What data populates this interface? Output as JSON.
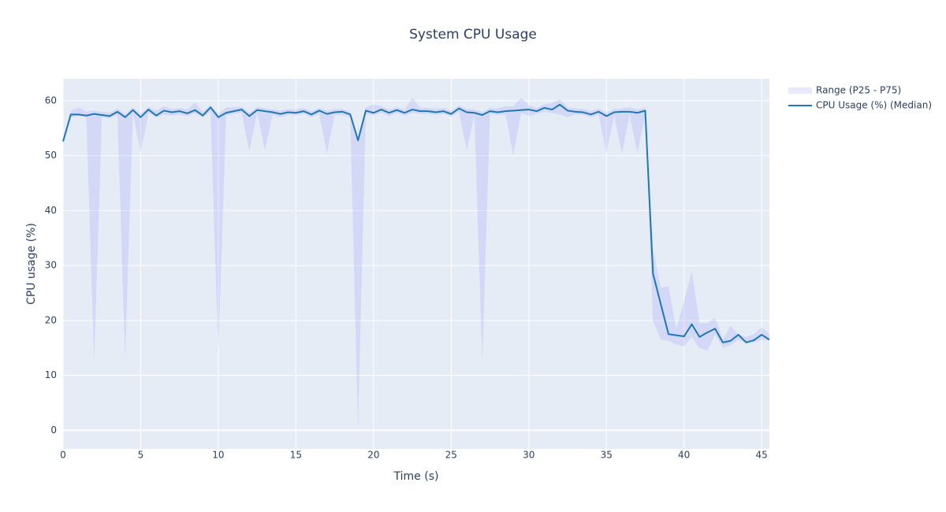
{
  "chart_data": {
    "type": "line-band",
    "title": "System CPU Usage",
    "x_label": "Time (s)",
    "y_label": "CPU usage (%)",
    "xlim": [
      0,
      45.5
    ],
    "ylim": [
      -3.4,
      64
    ],
    "xticks": [
      0,
      5,
      10,
      15,
      20,
      25,
      30,
      35,
      40,
      45
    ],
    "yticks": [
      0,
      10,
      20,
      30,
      40,
      50,
      60
    ],
    "grid": true,
    "legend": "top-right",
    "x": [
      0,
      0.5,
      1,
      1.5,
      2,
      2.5,
      3,
      3.5,
      4,
      4.5,
      5,
      5.5,
      6,
      6.5,
      7,
      7.5,
      8,
      8.5,
      9,
      9.5,
      10,
      10.5,
      11,
      11.5,
      12,
      12.5,
      13,
      13.5,
      14,
      14.5,
      15,
      15.5,
      16,
      16.5,
      17,
      17.5,
      18,
      18.5,
      19,
      19.5,
      20,
      20.5,
      21,
      21.5,
      22,
      22.5,
      23,
      23.5,
      24,
      24.5,
      25,
      25.5,
      26,
      26.5,
      27,
      27.5,
      28,
      28.5,
      29,
      29.5,
      30,
      30.5,
      31,
      31.5,
      32,
      32.5,
      33,
      33.5,
      34,
      34.5,
      35,
      35.5,
      36,
      36.5,
      37,
      37.5,
      38,
      38.5,
      39,
      39.5,
      40,
      40.5,
      41,
      41.5,
      42,
      42.5,
      43,
      43.5,
      44,
      44.5,
      45,
      45.5
    ],
    "series": [
      {
        "name": "Range (P25 - P75)",
        "color": "rgba(99,110,250,0.15)",
        "lower": [
          52.0,
          57.0,
          57.3,
          57.0,
          12.5,
          57.0,
          56.8,
          57.5,
          13.0,
          57.8,
          50.5,
          57.8,
          57.0,
          57.5,
          57.3,
          57.5,
          57.2,
          57.8,
          57.0,
          58.0,
          14.0,
          57.3,
          57.6,
          57.8,
          50.8,
          57.8,
          51.0,
          57.4,
          57.0,
          57.4,
          57.3,
          57.6,
          57.0,
          57.6,
          50.5,
          57.4,
          57.4,
          57.0,
          0.5,
          57.6,
          57.3,
          57.8,
          57.2,
          57.8,
          57.3,
          57.8,
          57.6,
          57.6,
          57.4,
          57.6,
          57.1,
          58.0,
          51.0,
          57.3,
          12.5,
          57.6,
          57.4,
          57.6,
          50.0,
          57.8,
          57.2,
          57.6,
          58.0,
          57.8,
          57.5,
          57.0,
          57.5,
          57.4,
          57.0,
          57.4,
          50.5,
          57.3,
          50.5,
          57.4,
          50.5,
          57.6,
          20.0,
          16.5,
          16.3,
          15.6,
          15.3,
          17.0,
          15.0,
          14.5,
          17.5,
          15.0,
          15.5,
          16.5,
          15.8,
          16.0,
          16.5,
          16.3
        ],
        "upper": [
          53.0,
          58.2,
          58.8,
          58.0,
          58.2,
          58.0,
          57.8,
          58.6,
          57.6,
          58.8,
          57.6,
          58.9,
          58.2,
          59.0,
          58.5,
          58.7,
          58.4,
          59.6,
          58.0,
          59.2,
          57.6,
          58.8,
          58.8,
          58.9,
          57.8,
          58.9,
          58.6,
          58.4,
          58.2,
          58.5,
          58.4,
          58.7,
          58.1,
          58.7,
          58.2,
          58.5,
          58.5,
          58.0,
          53.2,
          58.8,
          59.3,
          59.0,
          58.4,
          58.8,
          58.4,
          60.5,
          58.7,
          58.7,
          58.5,
          58.7,
          58.2,
          59.1,
          58.5,
          58.4,
          58.0,
          58.7,
          58.6,
          59.0,
          59.0,
          60.5,
          59.2,
          58.7,
          59.3,
          59.6,
          60.3,
          58.8,
          58.6,
          58.5,
          58.1,
          58.6,
          57.8,
          58.5,
          58.6,
          58.8,
          58.4,
          58.8,
          33.0,
          26.0,
          26.2,
          18.5,
          23.5,
          29.0,
          19.5,
          19.5,
          20.5,
          16.5,
          19.0,
          17.5,
          17.0,
          17.5,
          18.8,
          17.5
        ]
      },
      {
        "name": "CPU Usage (%) (Median)",
        "color": "#1f77b4",
        "values": [
          52.6,
          57.5,
          57.5,
          57.3,
          57.6,
          57.4,
          57.2,
          58.0,
          57.0,
          58.3,
          57.0,
          58.4,
          57.3,
          58.2,
          57.9,
          58.1,
          57.7,
          58.3,
          57.3,
          58.8,
          57.0,
          57.8,
          58.1,
          58.4,
          57.2,
          58.3,
          58.1,
          57.9,
          57.6,
          57.9,
          57.8,
          58.1,
          57.5,
          58.2,
          57.6,
          57.9,
          58.0,
          57.5,
          52.8,
          58.2,
          57.8,
          58.4,
          57.8,
          58.3,
          57.8,
          58.4,
          58.1,
          58.1,
          57.9,
          58.1,
          57.6,
          58.6,
          57.9,
          57.8,
          57.4,
          58.1,
          57.9,
          58.1,
          58.2,
          58.3,
          58.4,
          58.1,
          58.7,
          58.4,
          59.3,
          58.2,
          58.0,
          57.9,
          57.5,
          58.0,
          57.2,
          57.9,
          58.0,
          58.0,
          57.8,
          58.2,
          28.5,
          23.0,
          17.5,
          17.3,
          17.1,
          19.3,
          17.0,
          17.8,
          18.5,
          16.0,
          16.3,
          17.4,
          16.0,
          16.4,
          17.4,
          16.5
        ]
      }
    ]
  }
}
